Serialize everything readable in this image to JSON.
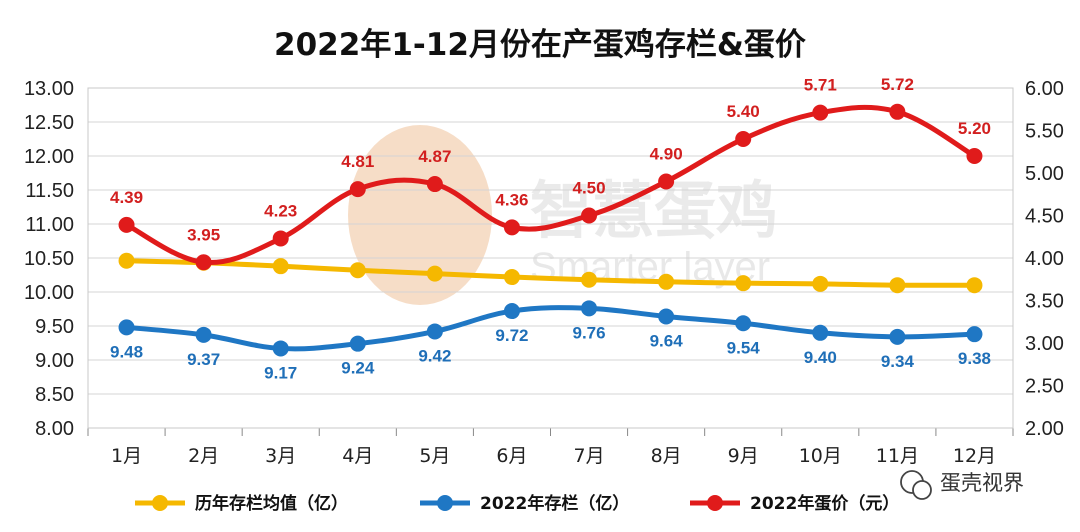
{
  "chart_data": {
    "type": "line",
    "title": "2022年1-12月份在产蛋鸡存栏&蛋价",
    "categories": [
      "1月",
      "2月",
      "3月",
      "4月",
      "5月",
      "6月",
      "7月",
      "8月",
      "9月",
      "10月",
      "11月",
      "12月"
    ],
    "left_axis": {
      "ylim": [
        8.0,
        13.0
      ],
      "ticks": [
        "8.00",
        "8.50",
        "9.00",
        "9.50",
        "10.00",
        "10.50",
        "11.00",
        "11.50",
        "12.00",
        "12.50",
        "13.00"
      ]
    },
    "right_axis": {
      "ylim": [
        2.0,
        6.0
      ],
      "ticks": [
        "2.00",
        "2.50",
        "3.00",
        "3.50",
        "4.00",
        "4.50",
        "5.00",
        "5.50",
        "6.00"
      ]
    },
    "grid": true,
    "legend_position": "bottom",
    "series": [
      {
        "name": "历年存栏均值（亿）",
        "axis": "left",
        "color": "#f5b800",
        "values": [
          10.46,
          10.43,
          10.38,
          10.32,
          10.27,
          10.22,
          10.18,
          10.15,
          10.13,
          10.12,
          10.1,
          10.1
        ]
      },
      {
        "name": "2022年存栏（亿）",
        "axis": "left",
        "color": "#1f77c4",
        "values": [
          9.48,
          9.37,
          9.17,
          9.24,
          9.42,
          9.72,
          9.76,
          9.64,
          9.54,
          9.4,
          9.34,
          9.38
        ],
        "labels": [
          "9.48",
          "9.37",
          "9.17",
          "9.24",
          "9.42",
          "9.72",
          "9.76",
          "9.64",
          "9.54",
          "9.40",
          "9.34",
          "9.38"
        ]
      },
      {
        "name": "2022年蛋价（元）",
        "axis": "right",
        "color": "#e01b1b",
        "values": [
          4.39,
          3.95,
          4.23,
          4.81,
          4.87,
          4.36,
          4.5,
          4.9,
          5.4,
          5.71,
          5.72,
          5.2
        ],
        "labels": [
          "4.39",
          "3.95",
          "4.23",
          "4.81",
          "4.87",
          "4.36",
          "4.50",
          "4.90",
          "5.40",
          "5.71",
          "5.72",
          "5.20"
        ]
      }
    ]
  },
  "watermark": {
    "text": "智慧蛋鸡",
    "subtext": "Smarter layer"
  },
  "brand": {
    "label": "蛋壳视界",
    "icon": "wechat-icon"
  }
}
